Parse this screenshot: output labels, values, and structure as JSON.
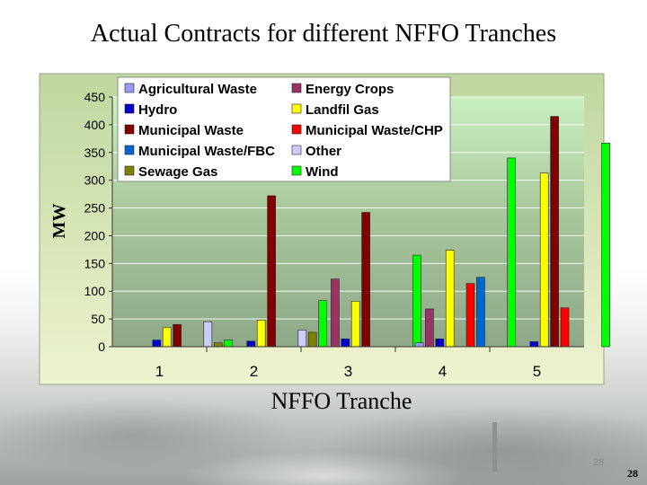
{
  "slide": {
    "title": "Actual Contracts for different NFFO Tranches",
    "page_number_small": "28",
    "page_number": "28"
  },
  "chart_data": {
    "type": "bar",
    "title": "",
    "xlabel": "NFFO Tranche",
    "ylabel": "MW",
    "categories": [
      "1",
      "2",
      "3",
      "4",
      "5"
    ],
    "ylim": [
      0,
      450
    ],
    "yticks": [
      0,
      50,
      100,
      150,
      200,
      250,
      300,
      350,
      400,
      450
    ],
    "grid": true,
    "legend_position": "top-left",
    "series": [
      {
        "name": "Agricultural Waste",
        "color": "#9999ff",
        "values": [
          0,
          0,
          0,
          7,
          0
        ]
      },
      {
        "name": "Energy Crops",
        "color": "#993366",
        "values": [
          0,
          0,
          122,
          68,
          0
        ]
      },
      {
        "name": "Hydro",
        "color": "#0000cc",
        "values": [
          12,
          10,
          14,
          14,
          9
        ]
      },
      {
        "name": "Landfil Gas",
        "color": "#ffff00",
        "values": [
          35,
          48,
          82,
          174,
          313
        ]
      },
      {
        "name": "Municipal Waste",
        "color": "#800000",
        "values": [
          40,
          272,
          242,
          0,
          415
        ]
      },
      {
        "name": "Municipal Waste/CHP",
        "color": "#ff0000",
        "values": [
          0,
          0,
          0,
          114,
          70
        ]
      },
      {
        "name": "Municipal Waste/FBC",
        "color": "#0066cc",
        "values": [
          0,
          0,
          0,
          125,
          0
        ]
      },
      {
        "name": "Other",
        "color": "#ccccff",
        "values": [
          45,
          30,
          0,
          0,
          0
        ]
      },
      {
        "name": "Sewage Gas",
        "color": "#808000",
        "values": [
          7,
          26,
          0,
          0,
          0
        ]
      },
      {
        "name": "Wind",
        "color": "#00ff00",
        "values": [
          12,
          83,
          165,
          340,
          367
        ]
      }
    ]
  }
}
